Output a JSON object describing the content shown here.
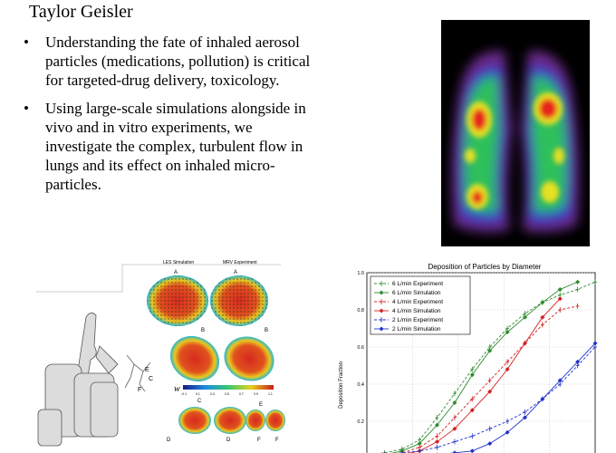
{
  "slide": {
    "title": "Taylor Geisler",
    "bullets": [
      {
        "line1": "Understanding the fate of inhaled aerosol",
        "line2": "particles (medications, pollution) is critical",
        "line3": "for targeted-drug delivery, toxicology."
      },
      {
        "line1": "Using large-scale simulations alongside in",
        "line2": "vivo and in vitro experiments, we",
        "line3": "investigate the complex, turbulent flow in",
        "line4": "lungs and its effect on inhaled micro-",
        "line5": "particles."
      }
    ]
  },
  "figure_left": {
    "col_les": "LES Simulation",
    "col_mri": "MRV Experiment",
    "labels": [
      "A",
      "B",
      "C",
      "D",
      "E",
      "F"
    ],
    "colorbar_symbol": "w",
    "colorbar_ticks": [
      "-0.1",
      "0.1",
      "0.3",
      "0.5",
      "0.7",
      "0.9",
      "1.1"
    ]
  },
  "chart_data": {
    "type": "line",
    "title": "Deposition of Particles by Diameter",
    "ylabel": "Deposition Fraction",
    "xlabel": "",
    "ylim": [
      0,
      1.0
    ],
    "yticks": [
      "0.2",
      "0.4",
      "0.6",
      "0.8",
      "1.0"
    ],
    "x": [
      0,
      1,
      2,
      3,
      4,
      5,
      6,
      7,
      8,
      9,
      10,
      11,
      12,
      13
    ],
    "legend_position": "top-left",
    "series": [
      {
        "name": "6 L/min Experiment",
        "color": "#2e8b2e",
        "style": "dashed",
        "marker": "plus",
        "values": [
          0.02,
          0.03,
          0.05,
          0.1,
          0.22,
          0.35,
          0.48,
          0.6,
          0.7,
          0.78,
          0.84,
          0.88,
          0.91,
          0.95
        ]
      },
      {
        "name": "6 L/min Simulation",
        "color": "#2e8b2e",
        "style": "solid",
        "marker": "diamond",
        "values": [
          0.01,
          0.02,
          0.04,
          0.08,
          0.18,
          0.3,
          0.45,
          0.58,
          0.68,
          0.76,
          0.84,
          0.91,
          0.95,
          null
        ]
      },
      {
        "name": "4 L/min Experiment",
        "color": "#d62020",
        "style": "dashed",
        "marker": "plus",
        "values": [
          0.01,
          0.02,
          0.03,
          0.06,
          0.12,
          0.22,
          0.32,
          0.42,
          0.52,
          0.62,
          0.72,
          0.8,
          0.82,
          null
        ]
      },
      {
        "name": "4 L/min Simulation",
        "color": "#d62020",
        "style": "solid",
        "marker": "diamond",
        "values": [
          0.01,
          0.01,
          0.02,
          0.04,
          0.09,
          0.16,
          0.26,
          0.36,
          0.48,
          0.62,
          0.76,
          0.86,
          null,
          null
        ]
      },
      {
        "name": "2 L/min Experiment",
        "color": "#2233cc",
        "style": "dashed",
        "marker": "plus",
        "values": [
          0.01,
          0.02,
          0.03,
          0.04,
          0.06,
          0.09,
          0.12,
          0.16,
          0.2,
          0.25,
          0.32,
          0.4,
          0.5,
          0.6
        ]
      },
      {
        "name": "2 L/min Simulation",
        "color": "#2233cc",
        "style": "solid",
        "marker": "diamond",
        "values": [
          0.0,
          0.01,
          0.01,
          0.02,
          0.02,
          0.03,
          0.04,
          0.08,
          0.14,
          0.22,
          0.32,
          0.42,
          0.52,
          0.62
        ]
      }
    ]
  }
}
